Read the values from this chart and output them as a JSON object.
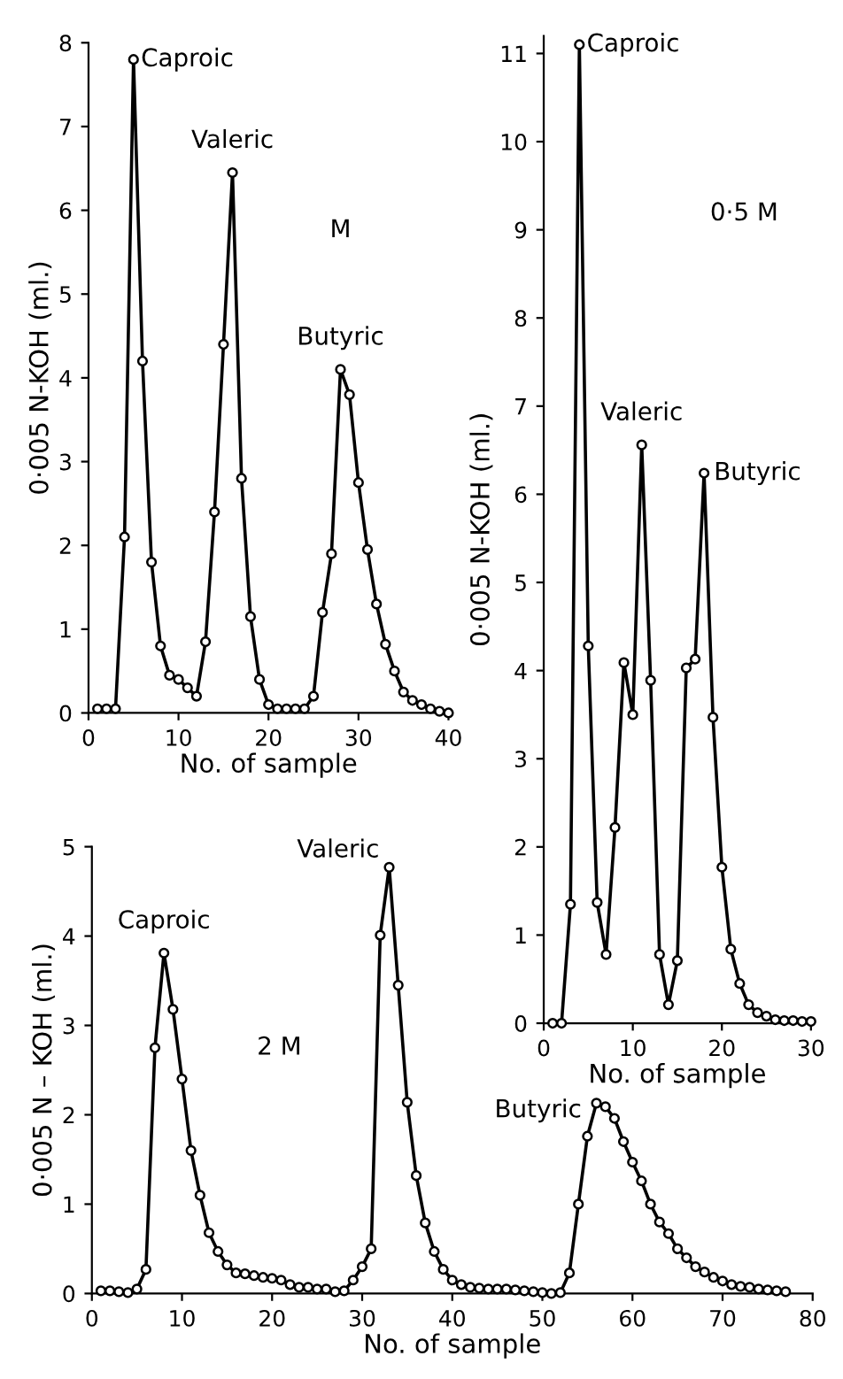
{
  "chart_data": [
    {
      "type": "line",
      "xlabel": "No. of sample",
      "ylabel": "0·005 N-KOH (ml.)",
      "xlim": [
        0,
        40
      ],
      "ylim": [
        0,
        8
      ],
      "xticks": [
        0,
        10,
        20,
        30,
        40
      ],
      "yticks": [
        0,
        1,
        2,
        3,
        4,
        5,
        6,
        7,
        8
      ],
      "marker": "circle",
      "line_style": "solid",
      "x": [
        1,
        2,
        3,
        4,
        5,
        6,
        7,
        8,
        9,
        10,
        11,
        12,
        13,
        14,
        15,
        16,
        17,
        18,
        19,
        20,
        21,
        22,
        23,
        24,
        25,
        26,
        27,
        28,
        29,
        30,
        31,
        32,
        33,
        34,
        35,
        36,
        37,
        38,
        39,
        40
      ],
      "series": [
        {
          "color": "#000000",
          "values": [
            0.05,
            0.05,
            0.05,
            2.1,
            7.8,
            4.2,
            1.8,
            0.8,
            0.45,
            0.4,
            0.3,
            0.2,
            0.85,
            2.4,
            4.4,
            6.45,
            2.8,
            1.15,
            0.4,
            0.1,
            0.05,
            0.05,
            0.05,
            0.05,
            0.2,
            1.2,
            1.9,
            4.1,
            3.8,
            2.75,
            1.95,
            1.3,
            0.82,
            0.5,
            0.25,
            0.15,
            0.1,
            0.05,
            0.02,
            0.0
          ]
        }
      ],
      "annotations": [
        {
          "text": "Caproic",
          "x": 5,
          "y": 7.8
        },
        {
          "text": "Valeric",
          "x": 16,
          "y": 6.45
        },
        {
          "text": "Butyric",
          "x": 28,
          "y": 4.1
        },
        "M"
      ]
    },
    {
      "type": "line",
      "xlabel": "No. of sample",
      "ylabel": "0·005 N-KOH (ml.)",
      "xlim": [
        0,
        30
      ],
      "ylim": [
        0,
        11.2
      ],
      "xticks": [
        0,
        10,
        20,
        30
      ],
      "yticks": [
        0,
        1,
        2,
        3,
        4,
        5,
        6,
        7,
        8,
        9,
        10,
        11
      ],
      "marker": "circle",
      "line_style": "solid",
      "x": [
        1,
        2,
        3,
        4,
        5,
        6,
        7,
        8,
        9,
        10,
        11,
        12,
        13,
        14,
        15,
        16,
        17,
        18,
        19,
        20,
        21,
        22,
        23,
        24,
        25,
        26,
        27,
        28,
        29,
        30
      ],
      "series": [
        {
          "color": "#000000",
          "values": [
            0.0,
            0.0,
            1.35,
            11.1,
            4.28,
            1.37,
            0.78,
            2.22,
            4.09,
            3.5,
            6.56,
            3.89,
            0.78,
            0.21,
            0.71,
            4.03,
            4.13,
            6.24,
            3.47,
            1.77,
            0.84,
            0.45,
            0.21,
            0.12,
            0.08,
            0.04,
            0.03,
            0.03,
            0.02,
            0.02
          ]
        }
      ],
      "annotations": [
        {
          "text": "Caproic",
          "x": 4,
          "y": 11.1
        },
        {
          "text": "Valeric",
          "x": 11,
          "y": 6.56
        },
        {
          "text": "Butyric",
          "x": 18,
          "y": 6.24
        },
        "0·5 M"
      ]
    },
    {
      "type": "line",
      "xlabel": "No. of sample",
      "ylabel": "0·005 N – KOH (ml.)",
      "xlim": [
        0,
        80
      ],
      "ylim": [
        0,
        5
      ],
      "xticks": [
        0,
        10,
        20,
        30,
        40,
        50,
        60,
        70,
        80
      ],
      "yticks": [
        0,
        1,
        2,
        3,
        4,
        5
      ],
      "marker": "circle",
      "line_style": "solid",
      "x": [
        1,
        2,
        3,
        4,
        5,
        6,
        7,
        8,
        9,
        10,
        11,
        12,
        13,
        14,
        15,
        16,
        17,
        18,
        19,
        20,
        21,
        22,
        23,
        24,
        25,
        26,
        27,
        28,
        29,
        30,
        31,
        32,
        33,
        34,
        35,
        36,
        37,
        38,
        39,
        40,
        41,
        42,
        43,
        44,
        45,
        46,
        47,
        48,
        49,
        50,
        51,
        52,
        53,
        54,
        55,
        56,
        57,
        58,
        59,
        60,
        61,
        62,
        63,
        64,
        65,
        66,
        67,
        68,
        69,
        70,
        71,
        72,
        73,
        74,
        75,
        76,
        77
      ],
      "series": [
        {
          "color": "#000000",
          "values": [
            0.03,
            0.03,
            0.02,
            0.01,
            0.05,
            0.27,
            2.75,
            3.81,
            3.18,
            2.4,
            1.6,
            1.1,
            0.68,
            0.47,
            0.32,
            0.23,
            0.22,
            0.2,
            0.18,
            0.17,
            0.15,
            0.1,
            0.07,
            0.07,
            0.05,
            0.05,
            0.02,
            0.03,
            0.15,
            0.3,
            0.5,
            4.01,
            4.77,
            3.45,
            2.14,
            1.32,
            0.79,
            0.47,
            0.27,
            0.15,
            0.1,
            0.07,
            0.06,
            0.05,
            0.05,
            0.05,
            0.04,
            0.03,
            0.02,
            0.01,
            0.0,
            0.01,
            0.23,
            1.0,
            1.76,
            2.13,
            2.09,
            1.96,
            1.7,
            1.47,
            1.26,
            1.0,
            0.8,
            0.67,
            0.5,
            0.4,
            0.3,
            0.24,
            0.18,
            0.14,
            0.1,
            0.08,
            0.07,
            0.05,
            0.04,
            0.03,
            0.02
          ]
        }
      ],
      "annotations": [
        {
          "text": "Caproic",
          "x": 8,
          "y": 3.81
        },
        {
          "text": "Valeric",
          "x": 33,
          "y": 4.77
        },
        {
          "text": "Butyric",
          "x": 56,
          "y": 2.13
        },
        "2 M"
      ]
    }
  ]
}
